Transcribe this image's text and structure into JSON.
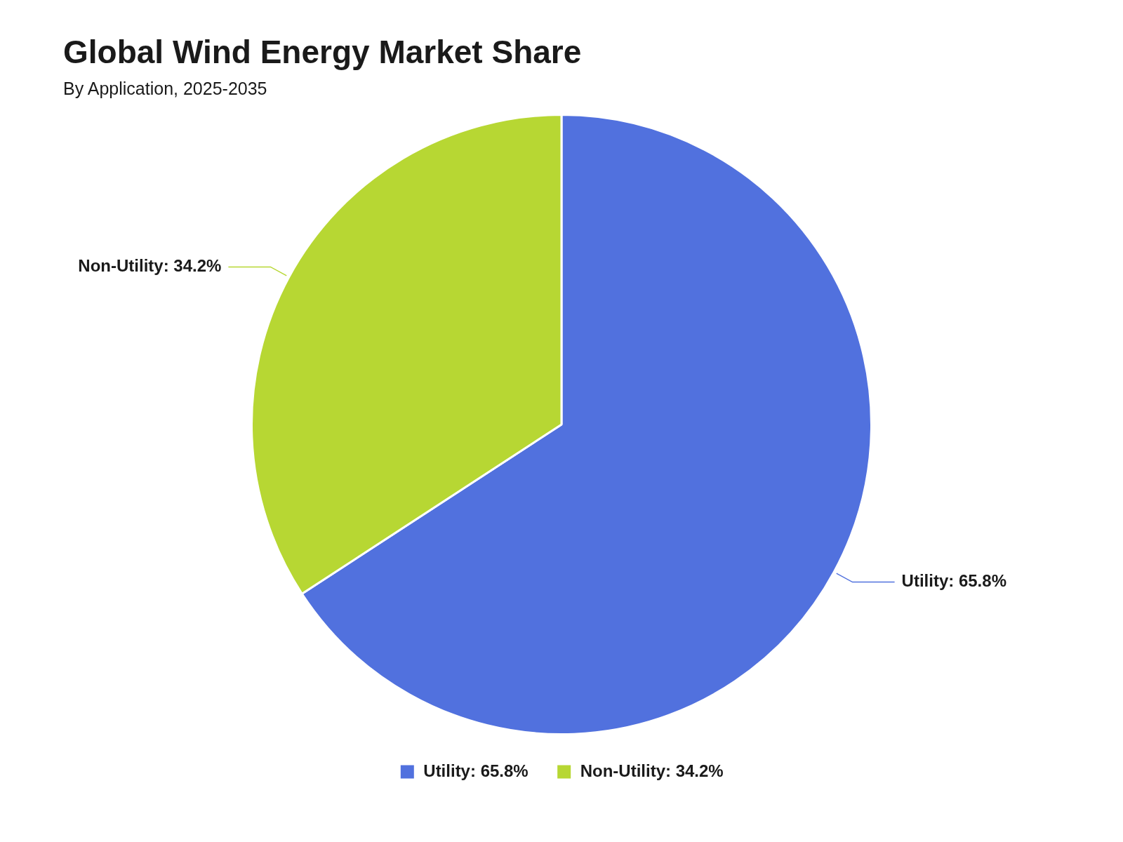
{
  "chart_data": {
    "type": "pie",
    "title": "Global Wind Energy Market Share",
    "subtitle": "By Application, 2025-2035",
    "categories": [
      "Utility: 65.8%",
      "Non-Utility: 34.2%"
    ],
    "values": [
      65.8,
      34.2
    ],
    "colors": [
      "#5171de",
      "#b7d733"
    ],
    "legend": "bottom"
  }
}
